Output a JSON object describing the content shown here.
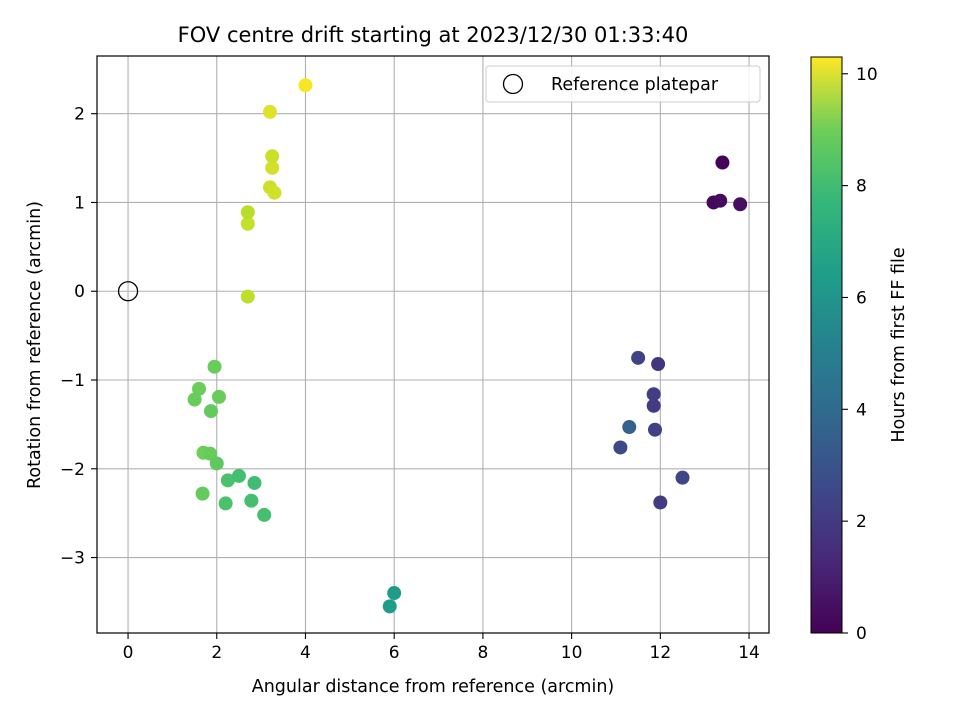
{
  "chart_data": {
    "type": "scatter",
    "title": "FOV centre drift starting at 2023/12/30 01:33:40",
    "xlabel": "Angular distance from reference (arcmin)",
    "ylabel": "Rotation from reference (arcmin)",
    "xlim": [
      -0.7,
      14.45
    ],
    "ylim": [
      -3.85,
      2.65
    ],
    "xticks": [
      0,
      2,
      4,
      6,
      8,
      10,
      12,
      14
    ],
    "yticks": [
      -3,
      -2,
      -1,
      0,
      1,
      2
    ],
    "xtick_labels": [
      "0",
      "2",
      "4",
      "6",
      "8",
      "10",
      "12",
      "14"
    ],
    "ytick_labels": [
      "−3",
      "−2",
      "−1",
      "0",
      "1",
      "2"
    ],
    "grid": true,
    "colormap": "viridis",
    "colorbar": {
      "label": "Hours from first FF file",
      "range": [
        0,
        10.3
      ],
      "ticks": [
        0,
        2,
        4,
        6,
        8,
        10
      ],
      "tick_labels": [
        "0",
        "2",
        "4",
        "6",
        "8",
        "10"
      ]
    },
    "legend": {
      "position": "top-right",
      "entries": [
        "Reference platepar"
      ]
    },
    "reference_point": {
      "x": 0,
      "y": 0
    },
    "points": [
      {
        "x": 13.4,
        "y": 1.45,
        "h": 0.1
      },
      {
        "x": 13.2,
        "y": 1.0,
        "h": 0.2
      },
      {
        "x": 13.35,
        "y": 1.02,
        "h": 0.3
      },
      {
        "x": 13.8,
        "y": 0.98,
        "h": 0.4
      },
      {
        "x": 11.5,
        "y": -0.75,
        "h": 2.0
      },
      {
        "x": 11.95,
        "y": -0.82,
        "h": 1.6
      },
      {
        "x": 11.85,
        "y": -1.16,
        "h": 1.9
      },
      {
        "x": 11.85,
        "y": -1.29,
        "h": 1.8
      },
      {
        "x": 11.3,
        "y": -1.53,
        "h": 3.2
      },
      {
        "x": 11.88,
        "y": -1.56,
        "h": 2.0
      },
      {
        "x": 11.1,
        "y": -1.76,
        "h": 2.3
      },
      {
        "x": 12.5,
        "y": -2.1,
        "h": 2.2
      },
      {
        "x": 12.0,
        "y": -2.38,
        "h": 1.8
      },
      {
        "x": 6.0,
        "y": -3.4,
        "h": 5.6
      },
      {
        "x": 5.9,
        "y": -3.55,
        "h": 5.7
      },
      {
        "x": 1.95,
        "y": -0.85,
        "h": 7.9
      },
      {
        "x": 1.6,
        "y": -1.1,
        "h": 7.95
      },
      {
        "x": 1.5,
        "y": -1.22,
        "h": 7.9
      },
      {
        "x": 2.05,
        "y": -1.19,
        "h": 7.9
      },
      {
        "x": 1.87,
        "y": -1.35,
        "h": 7.8
      },
      {
        "x": 1.7,
        "y": -1.82,
        "h": 8.0
      },
      {
        "x": 1.85,
        "y": -1.83,
        "h": 7.9
      },
      {
        "x": 2.0,
        "y": -1.94,
        "h": 7.7
      },
      {
        "x": 2.25,
        "y": -2.13,
        "h": 7.3
      },
      {
        "x": 2.5,
        "y": -2.08,
        "h": 7.2
      },
      {
        "x": 2.85,
        "y": -2.16,
        "h": 7.1
      },
      {
        "x": 1.68,
        "y": -2.28,
        "h": 7.8
      },
      {
        "x": 2.2,
        "y": -2.39,
        "h": 7.3
      },
      {
        "x": 2.78,
        "y": -2.36,
        "h": 7.2
      },
      {
        "x": 3.07,
        "y": -2.52,
        "h": 7.2
      },
      {
        "x": 2.7,
        "y": -0.06,
        "h": 9.3
      },
      {
        "x": 2.7,
        "y": 0.76,
        "h": 9.4
      },
      {
        "x": 2.7,
        "y": 0.89,
        "h": 9.2
      },
      {
        "x": 3.2,
        "y": 1.17,
        "h": 9.5
      },
      {
        "x": 3.3,
        "y": 1.11,
        "h": 9.6
      },
      {
        "x": 3.25,
        "y": 1.39,
        "h": 9.6
      },
      {
        "x": 3.25,
        "y": 1.52,
        "h": 9.5
      },
      {
        "x": 3.2,
        "y": 2.02,
        "h": 9.8
      },
      {
        "x": 4.0,
        "y": 2.32,
        "h": 10.2
      }
    ]
  }
}
